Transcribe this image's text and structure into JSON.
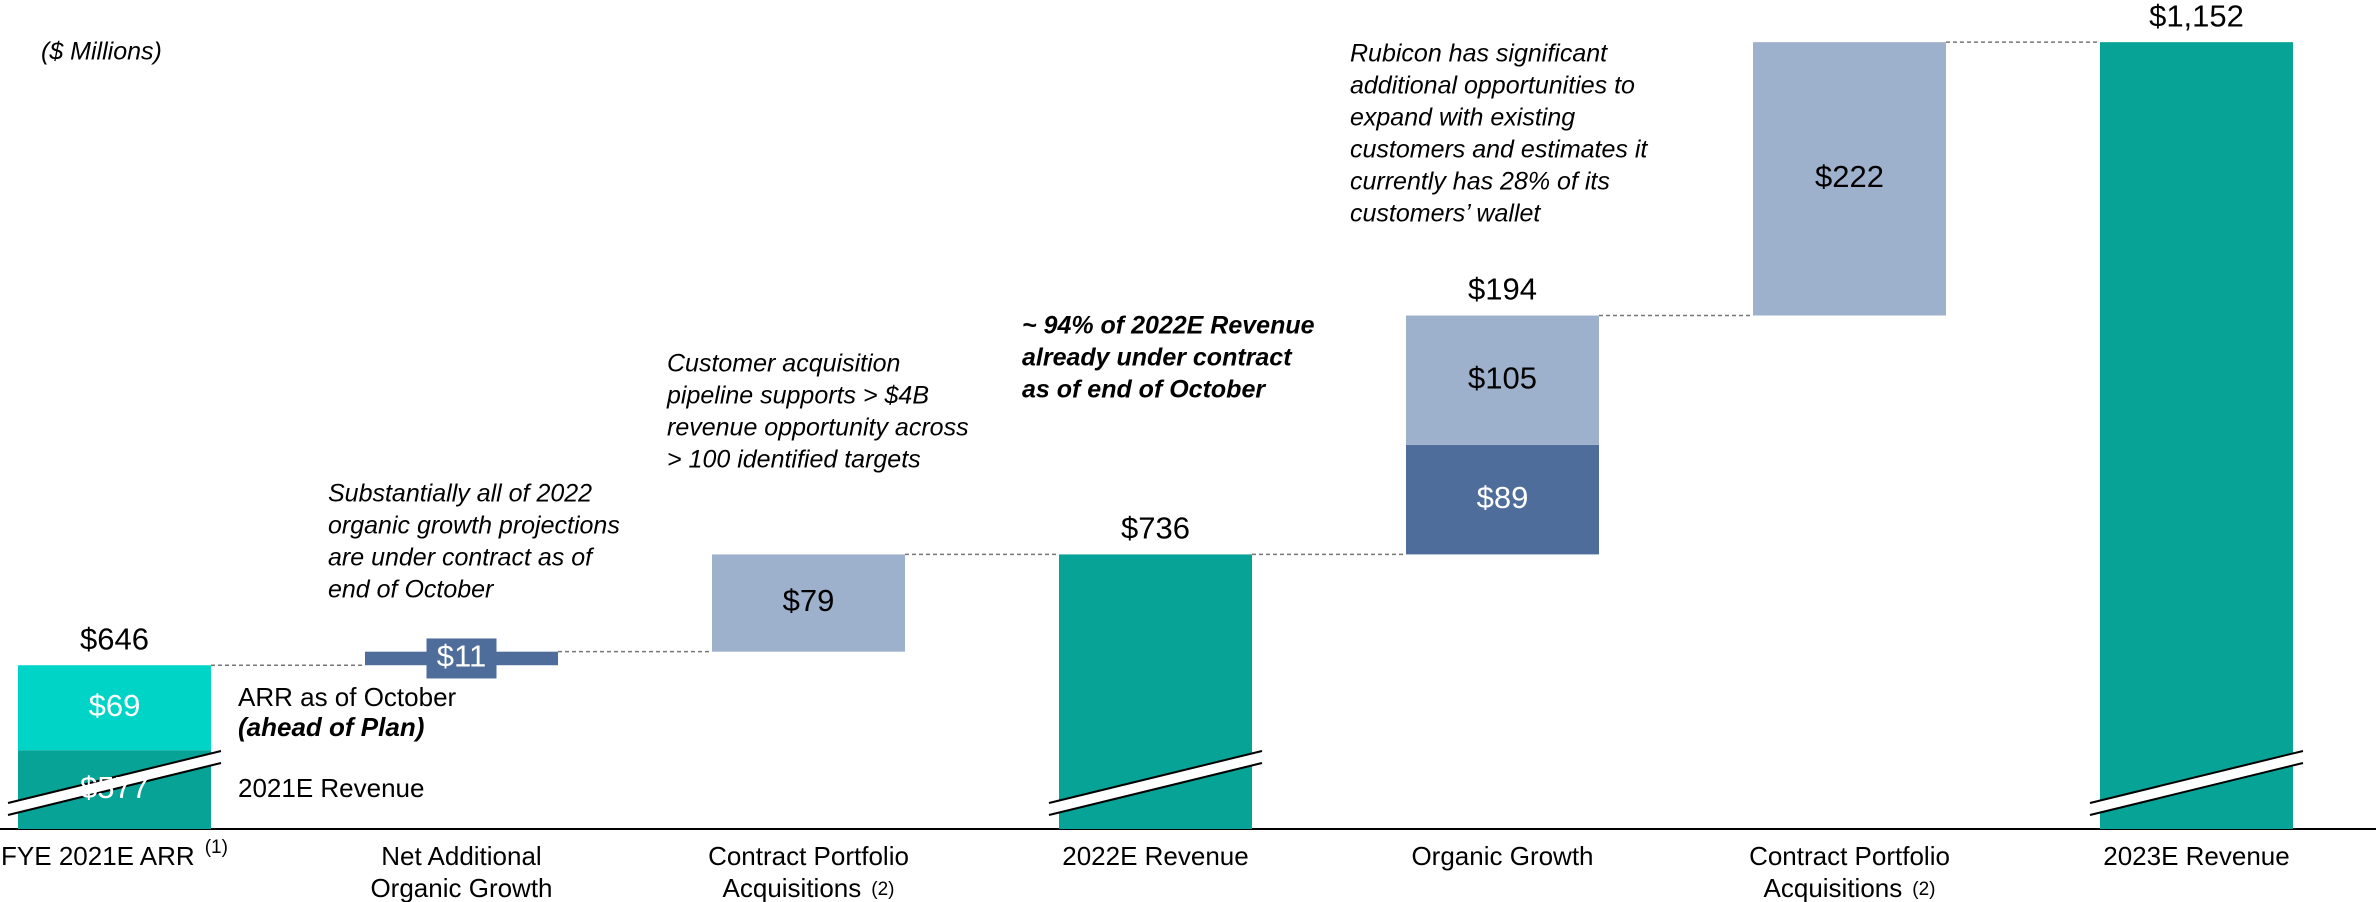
{
  "chart_data": {
    "type": "waterfall",
    "note": "($ Millions)",
    "ylim": [
      513,
      1170
    ],
    "categories": [
      [
        "FYE 2021E ARR"
      ],
      [
        "Net Additional",
        "Organic Growth"
      ],
      [
        "Contract Portfolio",
        "Acquisitions"
      ],
      [
        "2022E Revenue"
      ],
      [
        "Organic Growth"
      ],
      [
        "Contract Portfolio",
        "Acquisitions"
      ],
      [
        "2023E Revenue"
      ]
    ],
    "footnotes": [
      "(1)",
      null,
      "(2)",
      null,
      null,
      "(2)",
      null
    ],
    "bars": [
      {
        "segments": [
          {
            "value": 577,
            "value_label": "$577",
            "color": "#07a396"
          },
          {
            "value": 69,
            "value_label": "$69",
            "color": "#00d4c6"
          }
        ],
        "total": 646,
        "total_label": "$646"
      },
      {
        "segments": [
          {
            "value": 11,
            "value_label": "$11",
            "color": "#4e6d9b"
          }
        ]
      },
      {
        "segments": [
          {
            "value": 79,
            "value_label": "$79",
            "color": "#9db0cc"
          }
        ]
      },
      {
        "segments": [
          {
            "value": 736,
            "value_label": "$736",
            "color": "#07a396"
          }
        ]
      },
      {
        "segments": [
          {
            "value": 89,
            "value_label": "$89",
            "color": "#4e6d9b"
          },
          {
            "value": 105,
            "value_label": "$105",
            "color": "#9db0cc"
          }
        ],
        "total": 194,
        "total_label": "$194"
      },
      {
        "segments": [
          {
            "value": 222,
            "value_label": "$222",
            "color": "#9db0cc"
          }
        ]
      },
      {
        "segments": [
          {
            "value": 1152,
            "value_label": "$1,152",
            "color": "#07a396"
          }
        ]
      }
    ],
    "side_labels": [
      "ARR as of October",
      "(ahead of Plan)",
      "2021E Revenue"
    ],
    "annotations": [
      [
        "Substantially all of 2022",
        "organic growth projections",
        "are under contract as of",
        "end of October"
      ],
      [
        "Customer acquisition",
        "pipeline supports > $4B",
        "revenue opportunity across",
        "> 100 identified targets"
      ],
      [
        "~ 94% of 2022E Revenue",
        "already under contract",
        "as of end of October"
      ],
      [
        "Rubicon has significant",
        "additional opportunities to",
        "expand with existing",
        "customers and estimates it",
        "currently has 28% of its",
        "customers’ wallet"
      ]
    ]
  }
}
